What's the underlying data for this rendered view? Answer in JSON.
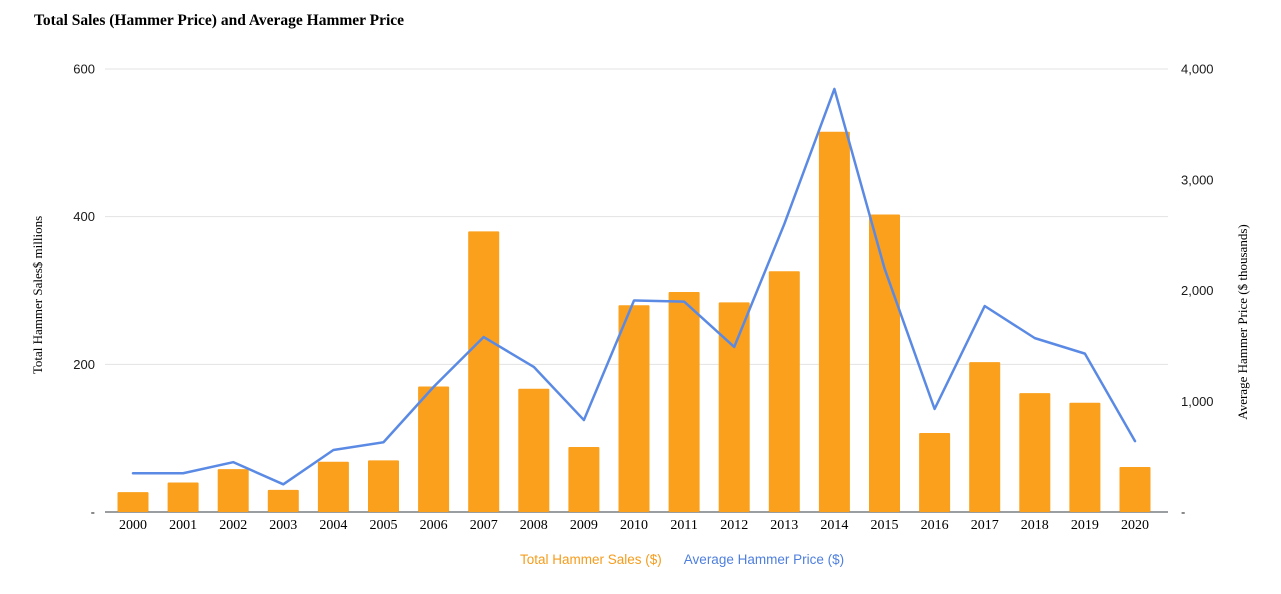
{
  "chart": {
    "title": "Total Sales (Hammer Price) and Average Hammer Price",
    "left_axis_title": "Total Hammer Sales$ millions",
    "right_axis_title": "Average Hammer Price ($ thousands)",
    "legend": [
      {
        "label": "Total Hammer Sales ($)",
        "color": "#F59C1C"
      },
      {
        "label": "Average Hammer Price ($)",
        "color": "#4E7FDE"
      }
    ]
  },
  "chart_data": {
    "type": "combo",
    "title": "Total Sales (Hammer Price) and Average Hammer Price",
    "categories": [
      "2000",
      "2001",
      "2002",
      "2003",
      "2004",
      "2005",
      "2006",
      "2007",
      "2008",
      "2009",
      "2010",
      "2011",
      "2012",
      "2013",
      "2014",
      "2015",
      "2016",
      "2017",
      "2018",
      "2019",
      "2020"
    ],
    "series": [
      {
        "name": "Total Hammer Sales ($)",
        "type": "bar",
        "axis": "left",
        "unit": "$ millions",
        "color": "#FAA01C",
        "values": [
          27,
          40,
          58,
          30,
          68,
          70,
          170,
          380,
          167,
          88,
          280,
          298,
          284,
          326,
          515,
          403,
          107,
          203,
          161,
          148,
          61
        ]
      },
      {
        "name": "Average Hammer Price ($)",
        "type": "line",
        "axis": "right",
        "unit": "$ thousands",
        "color": "#5B8AE5",
        "values": [
          350,
          350,
          450,
          250,
          560,
          630,
          1130,
          1580,
          1310,
          830,
          1910,
          1900,
          1490,
          2600,
          3820,
          2200,
          930,
          1860,
          1570,
          1430,
          640
        ]
      }
    ],
    "left_axis": {
      "label": "Total Hammer Sales$ millions",
      "range": [
        0,
        600
      ],
      "ticks": [
        0,
        200,
        400,
        600
      ],
      "tick_labels": [
        "-",
        "200",
        "400",
        "600"
      ]
    },
    "right_axis": {
      "label": "Average Hammer Price ($ thousands)",
      "range": [
        0,
        4000
      ],
      "ticks": [
        0,
        1000,
        2000,
        3000,
        4000
      ],
      "tick_labels": [
        "-",
        "1,000",
        "2,000",
        "3,000",
        "4,000"
      ]
    },
    "grid": true,
    "legend_position": "bottom"
  },
  "colors": {
    "grid": "#E3E3E3",
    "baseline": "#5F6368",
    "tick_text": "#1a1a1a"
  }
}
